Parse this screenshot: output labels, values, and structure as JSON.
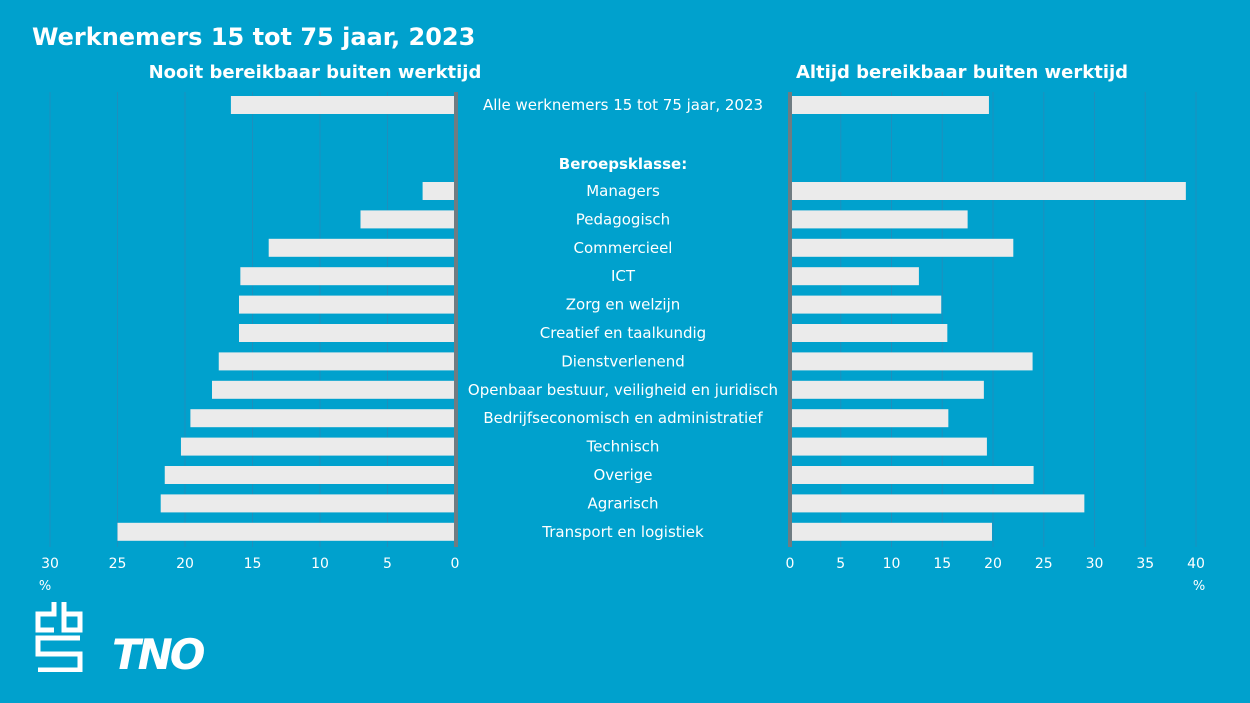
{
  "chart_data": {
    "type": "bar",
    "orientation": "horizontal-butterfly",
    "title": "Werknemers 15 tot 75 jaar, 2023",
    "group_label": "Beroepsklasse:",
    "unit": "%",
    "colors": {
      "background": "#00A1CD",
      "bar": "#EBEBEB",
      "grid": "#1E8FBD",
      "axis": "#6F7C82",
      "text": "#FFFFFF"
    },
    "left": {
      "title": "Nooit bereikbaar buiten werktijd",
      "xlim": [
        30,
        0
      ],
      "ticks": [
        "30",
        "25",
        "20",
        "15",
        "10",
        "5",
        "0"
      ]
    },
    "right": {
      "title": "Altijd bereikbaar buiten werktijd",
      "xlim": [
        0,
        40
      ],
      "ticks": [
        "0",
        "5",
        "10",
        "15",
        "20",
        "25",
        "30",
        "35",
        "40"
      ]
    },
    "total": {
      "name": "Alle werknemers 15 tot 75 jaar, 2023",
      "nooit": 16.6,
      "altijd": 19.6
    },
    "categories": [
      "Managers",
      "Pedagogisch",
      "Commercieel",
      "ICT",
      "Zorg en welzijn",
      "Creatief en taalkundig",
      "Dienstverlenend",
      "Openbaar bestuur, veiligheid en juridisch",
      "Bedrijfseconomisch en administratief",
      "Technisch",
      "Overige",
      "Agrarisch",
      "Transport en logistiek"
    ],
    "series": [
      {
        "name": "Nooit bereikbaar buiten werktijd",
        "values": [
          2.4,
          7.0,
          13.8,
          15.9,
          16.0,
          16.0,
          17.5,
          18.0,
          19.6,
          20.3,
          21.5,
          21.8,
          25.0
        ]
      },
      {
        "name": "Altijd bereikbaar buiten werktijd",
        "values": [
          39.0,
          17.5,
          22.0,
          12.7,
          14.9,
          15.5,
          23.9,
          19.1,
          15.6,
          19.4,
          24.0,
          29.0,
          19.9
        ]
      }
    ]
  },
  "logos": {
    "cbs": "cbs",
    "tno": "TNO"
  }
}
